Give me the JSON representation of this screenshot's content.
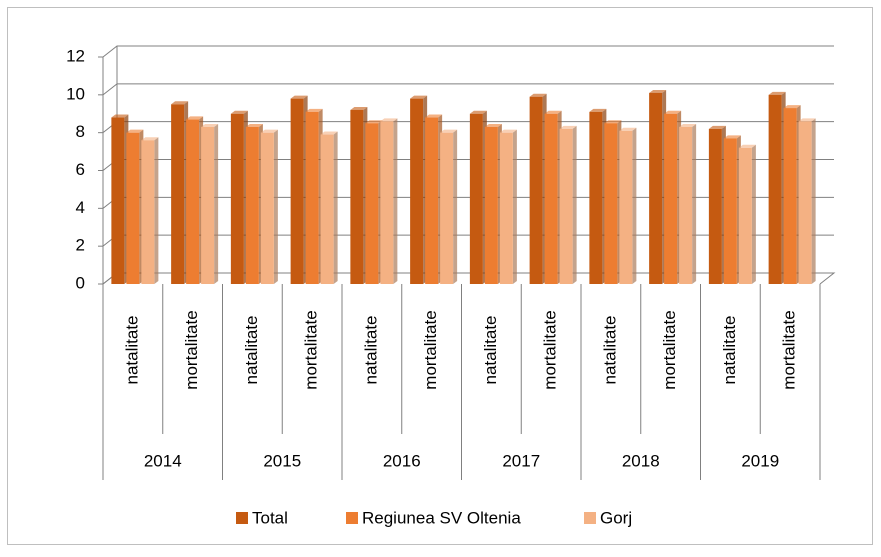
{
  "chart_data": {
    "type": "bar",
    "categories": [
      "natalitate",
      "mortalitate",
      "natalitate",
      "mortalitate",
      "natalitate",
      "mortalitate",
      "natalitate",
      "mortalitate",
      "natalitate",
      "mortalitate",
      "natalitate",
      "mortalitate"
    ],
    "category_groups": [
      "2014",
      "2015",
      "2016",
      "2017",
      "2018",
      "2019"
    ],
    "series": [
      {
        "name": "Total",
        "color": "#c55a11",
        "values": [
          8.8,
          9.5,
          9.0,
          9.8,
          9.2,
          9.8,
          9.0,
          9.9,
          9.1,
          10.1,
          8.2,
          10.0
        ]
      },
      {
        "name": "Regiunea SV Oltenia",
        "color": "#ed7d31",
        "values": [
          8.0,
          8.7,
          8.3,
          9.1,
          8.5,
          8.8,
          8.3,
          9.0,
          8.5,
          9.0,
          7.7,
          9.3
        ]
      },
      {
        "name": "Gorj",
        "color": "#f4b183",
        "values": [
          7.6,
          8.3,
          8.0,
          7.9,
          8.6,
          8.0,
          8.0,
          8.2,
          8.1,
          8.3,
          7.2,
          8.6
        ]
      }
    ],
    "ylim": [
      0,
      12
    ],
    "yticks": [
      0,
      2,
      4,
      6,
      8,
      10,
      12
    ],
    "grid": true,
    "legend": "bottom"
  }
}
